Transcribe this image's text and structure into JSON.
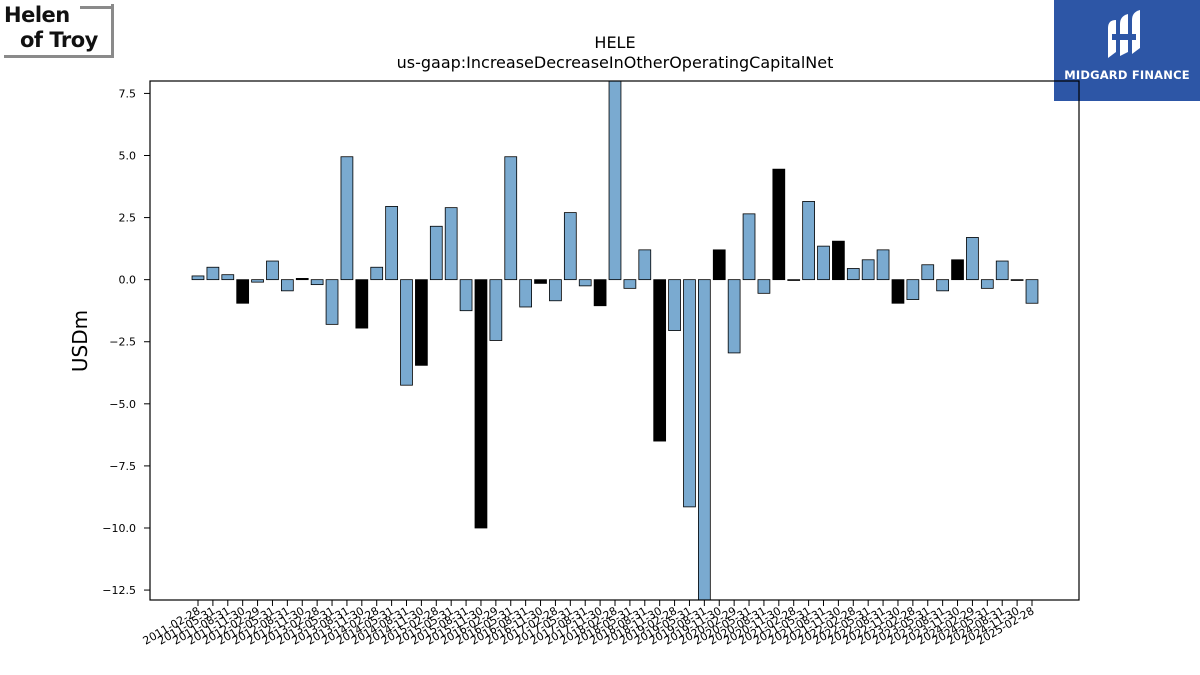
{
  "logos": {
    "left_line1": "Helen",
    "left_line2": "of Troy",
    "right_name": "MIDGARD FINANCE"
  },
  "chart_data": {
    "type": "bar",
    "title": "HELE",
    "subtitle": "us-gaap:IncreaseDecreaseInOtherOperatingCapitalNet",
    "xlabel": "",
    "ylabel": "USDm",
    "ylim": [
      -12.9,
      8.0
    ],
    "yticks": [
      -12.5,
      -10.0,
      -7.5,
      -5.0,
      -2.5,
      0.0,
      2.5,
      5.0,
      7.5
    ],
    "ytick_labels": [
      "−12.5",
      "−10.0",
      "−7.5",
      "−5.0",
      "−2.5",
      "0.0",
      "2.5",
      "5.0",
      "7.5"
    ],
    "grid": false,
    "colors": {
      "normal": "#7aaad0",
      "highlight": "#000000",
      "edge": "#000000"
    },
    "categories": [
      "2011-02-28",
      "2011-05-31",
      "2011-08-31",
      "2011-11-30",
      "2012-02-29",
      "2012-05-31",
      "2012-08-31",
      "2012-11-30",
      "2013-02-28",
      "2013-05-31",
      "2013-08-31",
      "2013-11-30",
      "2014-02-28",
      "2014-05-31",
      "2014-08-31",
      "2014-11-30",
      "2015-02-28",
      "2015-05-31",
      "2015-08-31",
      "2015-11-30",
      "2016-02-29",
      "2016-05-31",
      "2016-08-31",
      "2016-11-30",
      "2017-02-28",
      "2017-05-31",
      "2017-08-31",
      "2017-11-30",
      "2018-02-28",
      "2018-05-31",
      "2018-08-31",
      "2018-11-30",
      "2019-02-28",
      "2019-05-31",
      "2019-08-31",
      "2019-11-30",
      "2020-02-29",
      "2020-05-31",
      "2020-08-31",
      "2020-11-30",
      "2021-02-28",
      "2021-05-31",
      "2021-08-31",
      "2021-11-30",
      "2022-02-28",
      "2022-05-31",
      "2022-08-31",
      "2022-11-30",
      "2023-02-28",
      "2023-05-31",
      "2023-08-31",
      "2023-11-30",
      "2024-02-29",
      "2024-05-31",
      "2024-08-31",
      "2024-11-30",
      "2025-02-28"
    ],
    "values": [
      0.15,
      0.5,
      0.2,
      -0.95,
      -0.1,
      0.75,
      -0.45,
      0.05,
      -0.2,
      -1.8,
      4.95,
      -1.95,
      0.5,
      2.95,
      -4.25,
      -3.45,
      2.15,
      2.9,
      -1.25,
      -10.0,
      -2.45,
      4.95,
      -1.1,
      -0.15,
      -0.85,
      2.7,
      -0.25,
      -1.05,
      8.0,
      -0.35,
      1.2,
      -6.5,
      -2.05,
      -9.15,
      -12.9,
      1.2,
      -2.95,
      2.65,
      -0.55,
      4.45,
      0.0,
      3.15,
      1.35,
      1.55,
      0.45,
      0.8,
      1.2,
      -0.95,
      -0.8,
      0.6,
      -0.45,
      0.8,
      1.7,
      -0.35,
      0.75,
      0.0,
      -0.95
    ],
    "highlight": [
      3,
      7,
      11,
      15,
      19,
      23,
      27,
      31,
      35,
      39,
      43,
      47,
      51,
      55
    ]
  }
}
